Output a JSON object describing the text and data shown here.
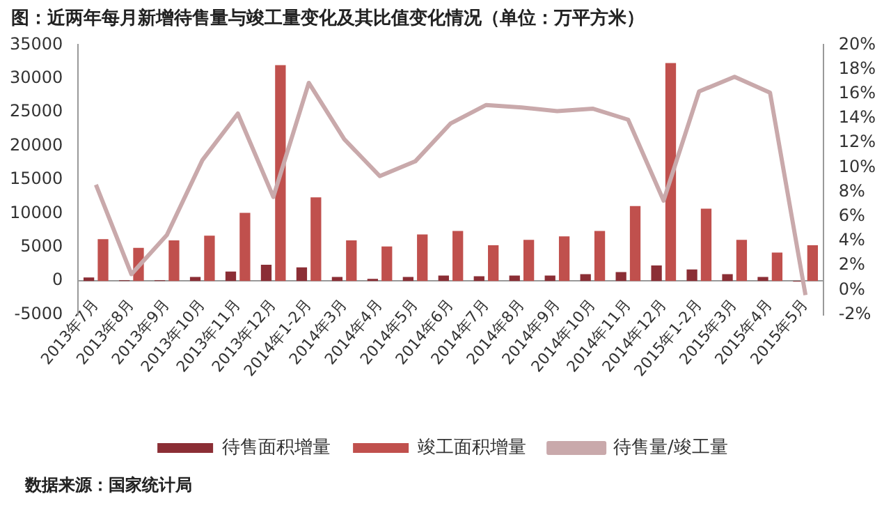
{
  "chart_data": {
    "type": "bar",
    "title": "图：近两年每月新增待售量与竣工量变化及其比值变化情况（单位：万平方米）",
    "categories": [
      "2013年7月",
      "2013年8月",
      "2013年9月",
      "2013年10月",
      "2013年11月",
      "2013年12月",
      "2014年1-2月",
      "2014年3月",
      "2014年4月",
      "2014年5月",
      "2014年6月",
      "2014年7月",
      "2014年8月",
      "2014年9月",
      "2014年10月",
      "2014年11月",
      "2014年12月",
      "2015年1-2月",
      "2015年3月",
      "2015年4月",
      "2015年5月"
    ],
    "series": [
      {
        "name": "待售面积增量",
        "color": "#8b2e35",
        "values": [
          500,
          100,
          100,
          600,
          1400,
          2400,
          2000,
          600,
          300,
          600,
          800,
          700,
          800,
          800,
          1000,
          1300,
          2300,
          1700,
          1000,
          600,
          -100
        ]
      },
      {
        "name": "竣工面积增量",
        "color": "#c0504d",
        "values": [
          6200,
          4900,
          6000,
          6700,
          10100,
          32000,
          12400,
          6000,
          5100,
          6900,
          7400,
          5300,
          6100,
          6600,
          7400,
          11100,
          32300,
          10700,
          6100,
          4200,
          5300
        ]
      },
      {
        "name": "待售量/竣工量",
        "type": "line",
        "axis": "y2",
        "color": "#c9a9ab",
        "values": [
          8.6,
          1.3,
          4.5,
          10.6,
          14.4,
          7.6,
          16.9,
          12.3,
          9.3,
          10.5,
          13.6,
          15.1,
          14.9,
          14.6,
          14.8,
          13.9,
          7.3,
          16.2,
          17.4,
          16.1,
          -0.4
        ]
      }
    ],
    "ylim": [
      -5000,
      35000
    ],
    "yticks": [
      -5000,
      0,
      5000,
      10000,
      15000,
      20000,
      25000,
      30000,
      35000
    ],
    "y2lim": [
      -2,
      20
    ],
    "y2ticks": [
      {
        "value": -2,
        "label": "-2%"
      },
      {
        "value": 0,
        "label": "0%"
      },
      {
        "value": 2,
        "label": "2%"
      },
      {
        "value": 4,
        "label": "4%"
      },
      {
        "value": 6,
        "label": "6%"
      },
      {
        "value": 8,
        "label": "8%"
      },
      {
        "value": 10,
        "label": "10%"
      },
      {
        "value": 12,
        "label": "12%"
      },
      {
        "value": 14,
        "label": "14%"
      },
      {
        "value": 16,
        "label": "16%"
      },
      {
        "value": 18,
        "label": "18%"
      },
      {
        "value": 20,
        "label": "20%"
      }
    ],
    "grid": false,
    "legend": "bottom",
    "marker": "none",
    "annotations": [
      "数据来源：国家统计局"
    ]
  }
}
